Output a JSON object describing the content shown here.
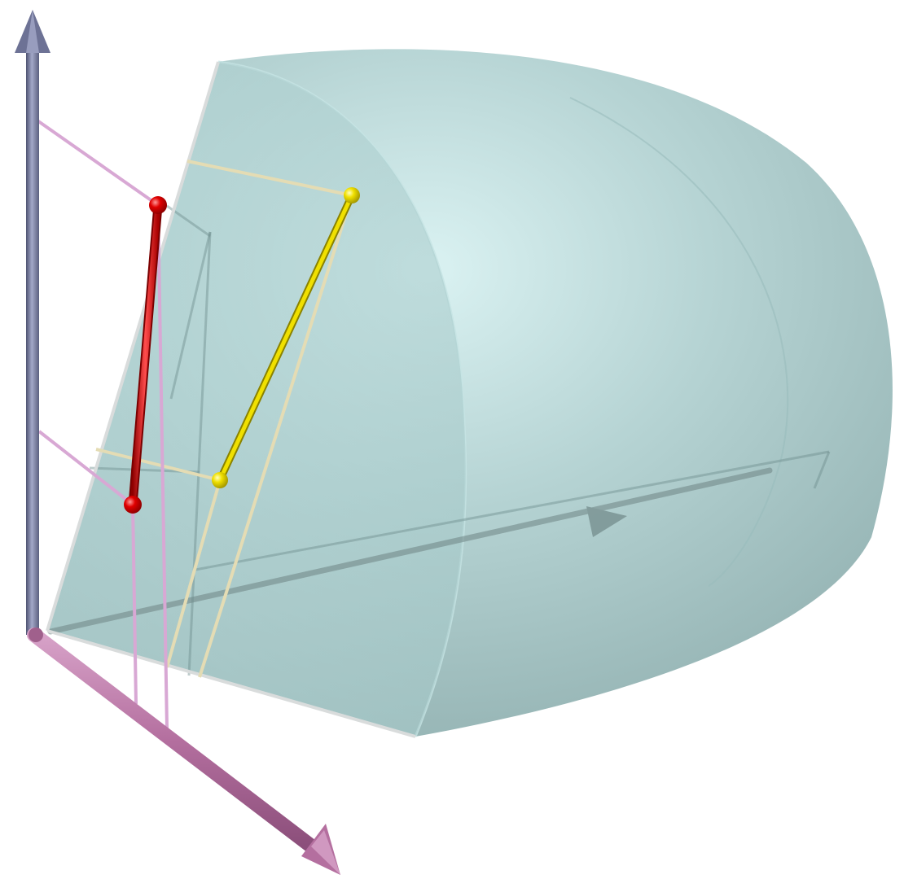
{
  "scene": {
    "kind": "3d-render",
    "text_labels": []
  },
  "colors": {
    "background": "#ffffff",
    "solid_light": "#d4f0f0",
    "solid_mid": "#a9cccc",
    "solid_dark": "#7fa3a3",
    "solid_edge": "#d9dcdc",
    "vertical_axis": "#6d7295",
    "vertical_axis_light": "#a3a8c8",
    "horizontal_axis": "#b46f9f",
    "horizontal_axis_light": "#d7a2c8",
    "red_segment": "#cc0000",
    "red_segment_light": "#ff4d4d",
    "yellow_segment": "#d8cc00",
    "yellow_segment_light": "#fff27a",
    "pink_guide": "#d8a8d4",
    "cream_guide": "#e4dcb4"
  },
  "elements": {
    "vertical_axis": "arrow",
    "horizontal_axis": "arrow",
    "depth_axis": "arrow",
    "red_segment": "segment-with-endpoints",
    "yellow_segment": "segment-with-endpoints",
    "solid": "translucent-region"
  }
}
